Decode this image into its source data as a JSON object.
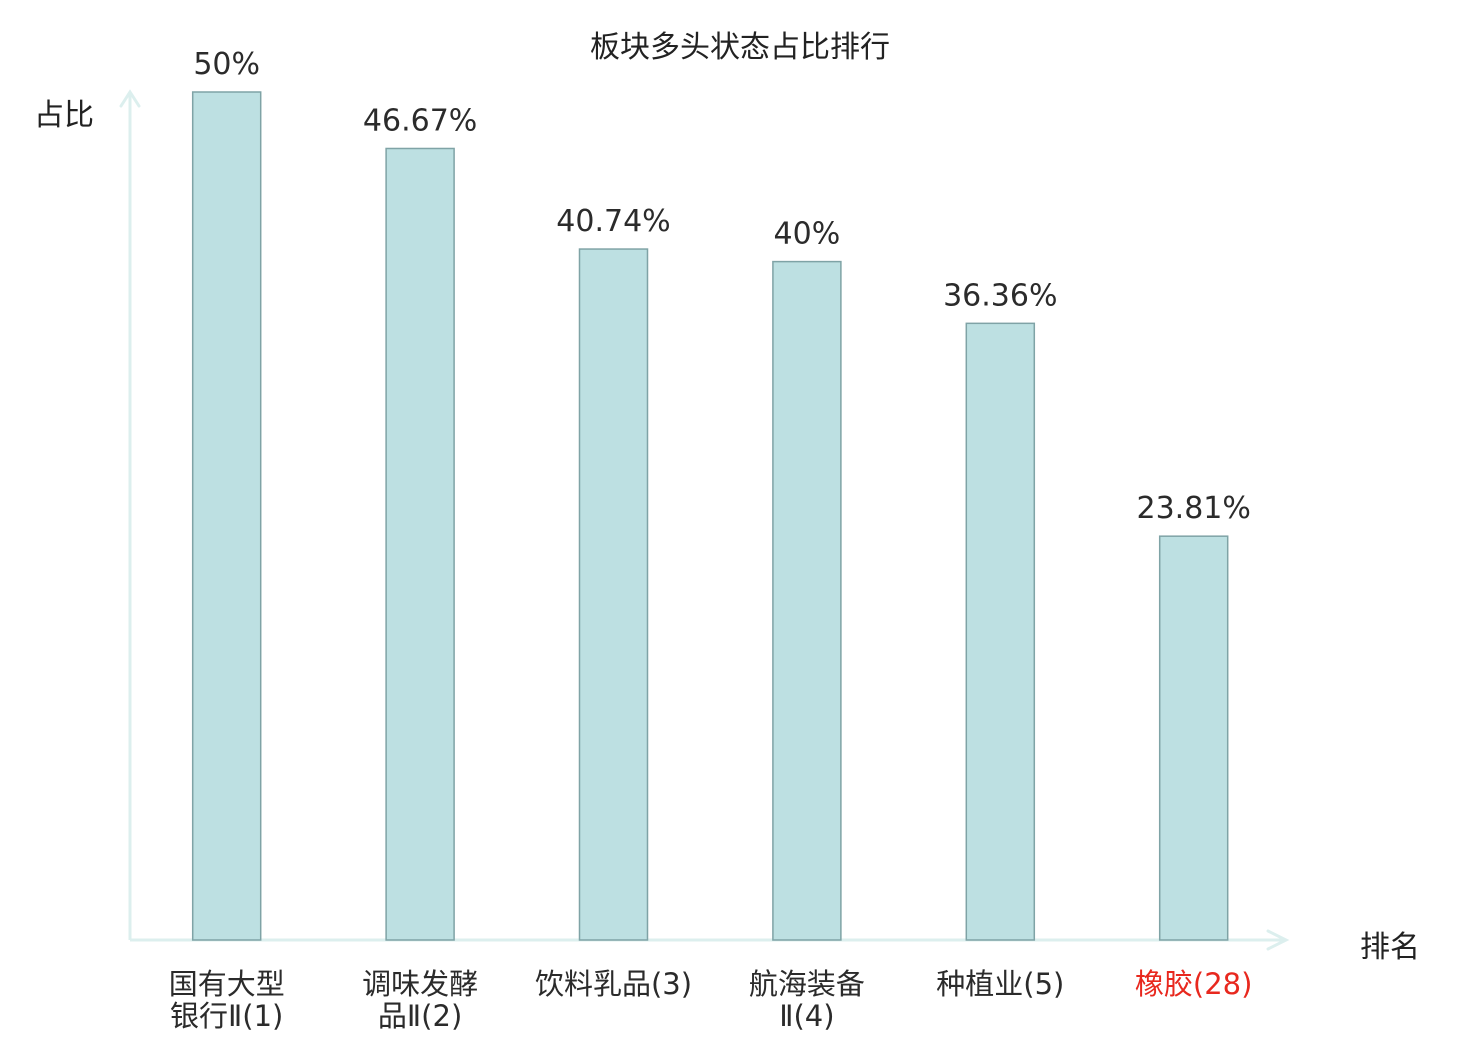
{
  "chart_data": {
    "type": "bar",
    "title": "板块多头状态占比排行",
    "ylabel": "占比",
    "xlabel": "排名",
    "ylim": [
      0,
      50
    ],
    "grid": false,
    "categories": [
      [
        "国有大型",
        "银行Ⅱ(1)"
      ],
      [
        "调味发酵",
        "品Ⅱ(2)"
      ],
      [
        "饮料乳品(3)"
      ],
      [
        "航海装备",
        "Ⅱ(4)"
      ],
      [
        "种植业(5)"
      ],
      [
        "橡胶(28)"
      ]
    ],
    "values": [
      50,
      46.67,
      40.74,
      40,
      36.36,
      23.81
    ],
    "value_labels": [
      "50%",
      "46.67%",
      "40.74%",
      "40%",
      "36.36%",
      "23.81%"
    ],
    "highlight_index": 5,
    "colors": {
      "bar_fill": "#bde0e2",
      "bar_stroke": "#7fa3a6",
      "axis": "#dcefee",
      "highlight_text": "#e8281e",
      "text": "#2b2b2b"
    }
  }
}
